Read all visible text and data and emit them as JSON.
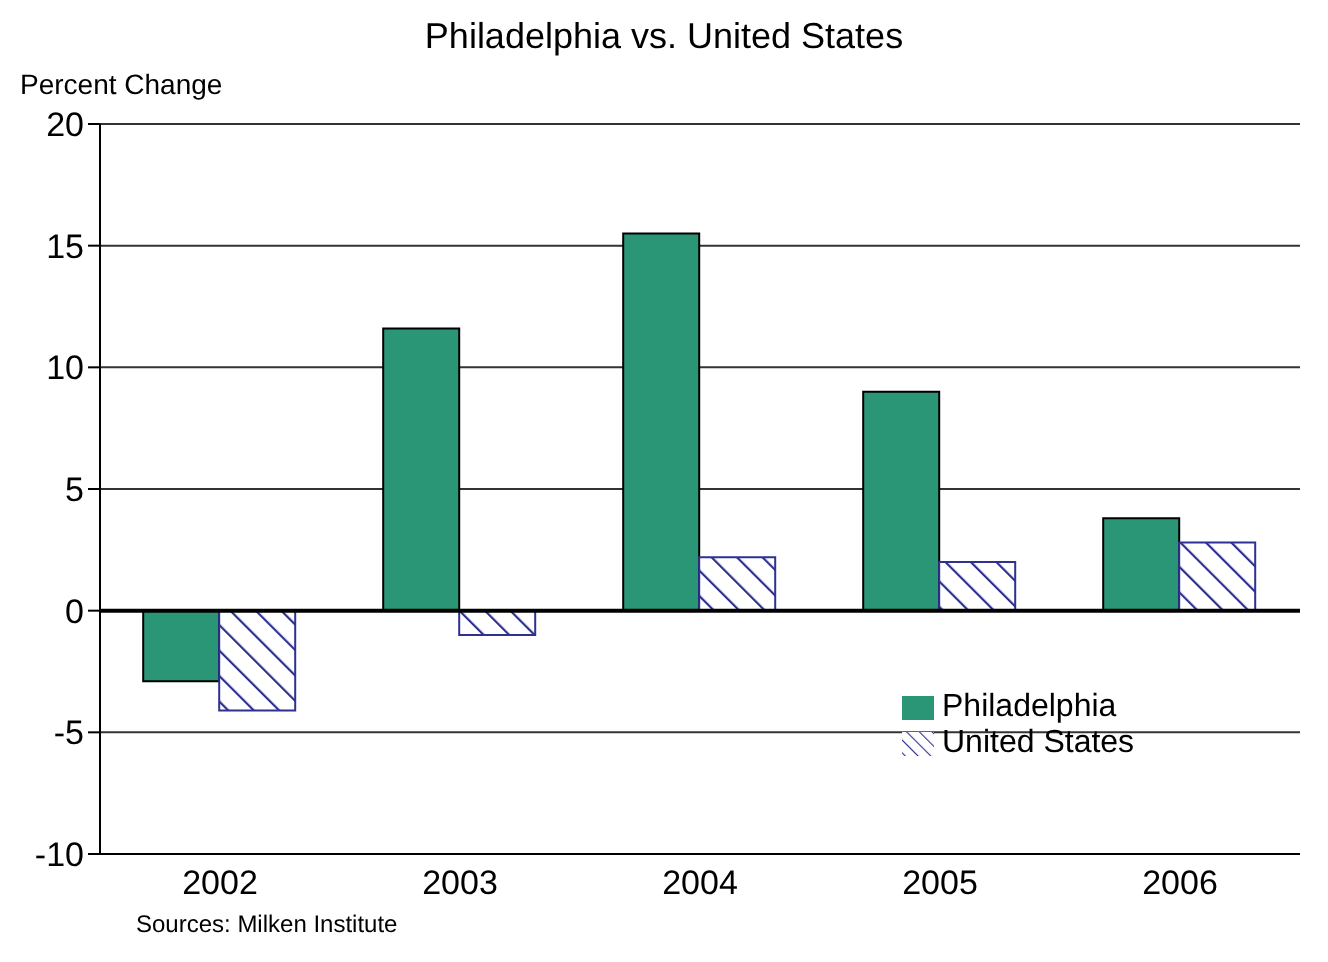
{
  "chart_data": {
    "type": "bar",
    "title": "Philadelphia vs. United States",
    "ylabel": "Percent Change",
    "categories": [
      "2002",
      "2003",
      "2004",
      "2005",
      "2006"
    ],
    "series": [
      {
        "name": "Philadelphia",
        "color": "#2b9676",
        "values": [
          -2.9,
          11.6,
          15.5,
          9.0,
          3.8
        ]
      },
      {
        "name": "United States",
        "color": "#2e3192",
        "values": [
          -4.1,
          -1.0,
          2.2,
          2.0,
          2.8
        ]
      }
    ],
    "ylim": [
      -10,
      20
    ],
    "yticks": [
      -10,
      -5,
      0,
      5,
      10,
      15,
      20
    ],
    "grid": "y",
    "legend": "bottom right",
    "annotations": [
      "Sources: Milken Institute"
    ]
  }
}
